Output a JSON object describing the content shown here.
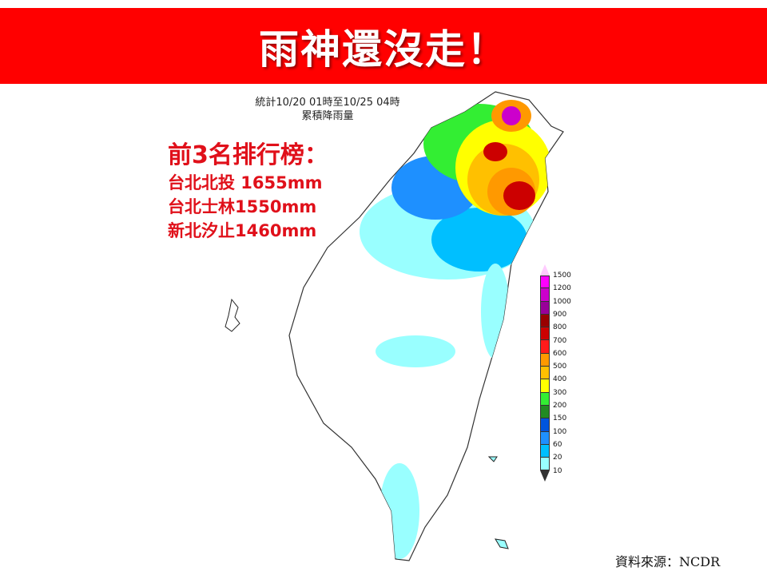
{
  "banner": {
    "title": "雨神還沒走！"
  },
  "map_header": {
    "line1": "統計10/20 01時至10/25 04時",
    "line2": "累積降雨量"
  },
  "ranking": {
    "heading": "前3名排行榜：",
    "items": [
      {
        "label": "台北北投 1655mm"
      },
      {
        "label": "台北士林1550mm"
      },
      {
        "label": "新北汐止1460mm"
      }
    ]
  },
  "legend": {
    "unit_levels": [
      "1500",
      "1200",
      "1000",
      "900",
      "800",
      "700",
      "600",
      "500",
      "400",
      "300",
      "200",
      "150",
      "100",
      "60",
      "20",
      "10"
    ],
    "colors": [
      "#ff00ff",
      "#cc00cc",
      "#990099",
      "#990000",
      "#cc0000",
      "#ff1a1a",
      "#ff9900",
      "#ffc000",
      "#ffff00",
      "#33ee33",
      "#228b22",
      "#0055dd",
      "#1e90ff",
      "#00bfff",
      "#99ffff"
    ],
    "top_color": "#ffccff",
    "bottom_color": "#ffffff"
  },
  "source": "資料來源：NCDR"
}
